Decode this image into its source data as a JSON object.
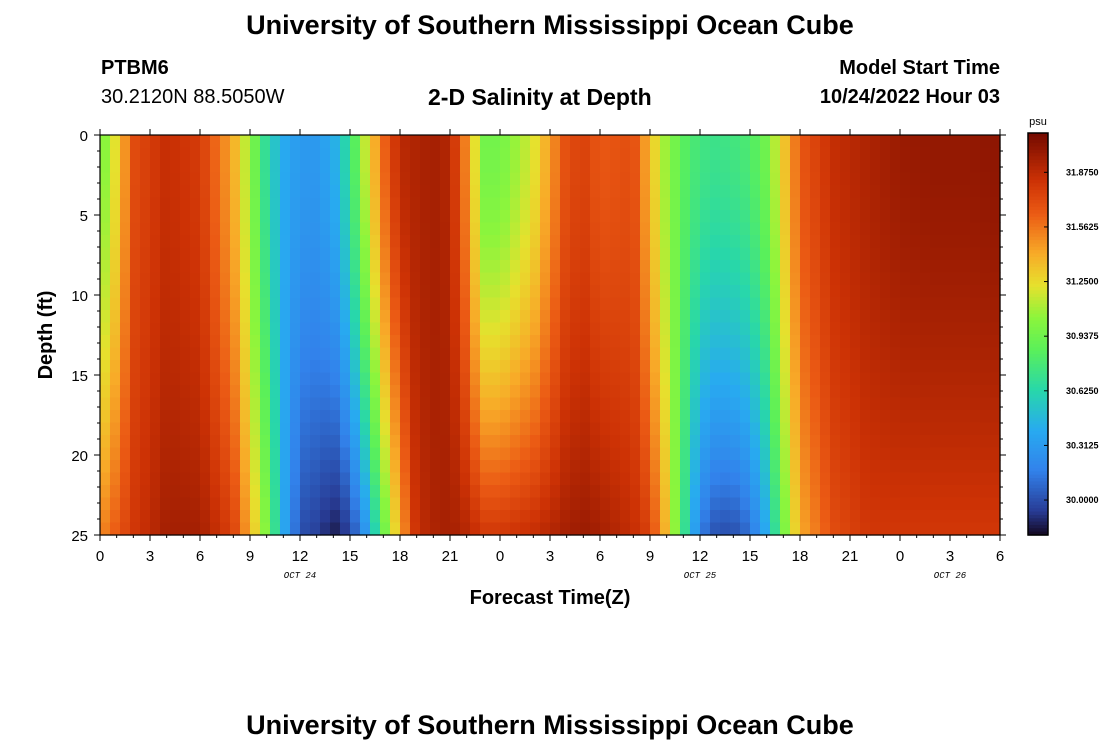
{
  "header": {
    "title": "University of Southern Mississippi Ocean Cube",
    "station": "PTBM6",
    "coords": "30.2120N  88.5050W",
    "subtitle": "2-D Salinity at Depth",
    "model_start_label": "Model Start Time",
    "model_start_value": "10/24/2022 Hour 03"
  },
  "footer": {
    "title": "University of Southern Mississippi Ocean Cube"
  },
  "chart_data": {
    "type": "heatmap",
    "title": "2-D Salinity at Depth",
    "xlabel": "Forecast Time(Z)",
    "ylabel": "Depth (ft)",
    "x_tick_labels": [
      "0",
      "3",
      "6",
      "9",
      "12",
      "15",
      "18",
      "21",
      "0",
      "3",
      "6",
      "9",
      "12",
      "15",
      "18",
      "21",
      "0",
      "3",
      "6"
    ],
    "date_labels": [
      {
        "text": "OCT 24",
        "at_tick": 4
      },
      {
        "text": "OCT 25",
        "at_tick": 12
      },
      {
        "text": "OCT 26",
        "at_tick": 17
      }
    ],
    "x_range_hours": [
      0,
      54
    ],
    "y_ticks": [
      0,
      5,
      10,
      15,
      20,
      25
    ],
    "y_range_ft": [
      0,
      25
    ],
    "colorbar": {
      "unit": "psu",
      "min": 29.8,
      "max": 32.1,
      "tick_labels": [
        "31.8750",
        "31.5625",
        "31.2500",
        "30.9375",
        "30.6250",
        "30.3125",
        "30.0000"
      ]
    },
    "salinity_profile_hours": [
      0,
      1,
      2,
      4,
      6,
      8,
      9,
      10,
      11,
      12,
      13,
      14,
      15,
      16,
      17,
      18,
      19,
      20,
      21,
      22,
      23,
      24,
      26,
      28,
      29,
      30,
      32,
      33,
      34,
      35,
      36,
      37,
      38,
      39,
      40,
      41,
      42,
      44,
      46,
      48,
      50,
      52,
      54
    ],
    "surface_psu": [
      30.95,
      31.25,
      31.7,
      31.85,
      31.78,
      31.4,
      31.05,
      30.65,
      30.4,
      30.3,
      30.3,
      30.4,
      30.7,
      31.2,
      31.6,
      31.88,
      31.92,
      31.95,
      31.9,
      31.5,
      30.95,
      30.95,
      31.2,
      31.7,
      31.75,
      31.65,
      31.7,
      31.35,
      31.05,
      30.85,
      30.75,
      30.72,
      30.75,
      30.8,
      30.95,
      31.3,
      31.65,
      31.85,
      31.92,
      31.98,
      32.0,
      32.0,
      32.02
    ],
    "bottom_psu": [
      31.5,
      31.65,
      31.8,
      31.95,
      31.95,
      31.75,
      31.4,
      31.0,
      30.4,
      30.0,
      29.95,
      29.85,
      29.95,
      30.3,
      30.9,
      31.4,
      31.85,
      31.92,
      31.95,
      31.9,
      31.8,
      31.8,
      31.85,
      31.95,
      31.98,
      31.95,
      31.85,
      31.75,
      31.35,
      30.75,
      30.15,
      30.0,
      30.0,
      30.1,
      30.4,
      30.95,
      31.4,
      31.7,
      31.8,
      31.8,
      31.8,
      31.8,
      31.8
    ]
  }
}
